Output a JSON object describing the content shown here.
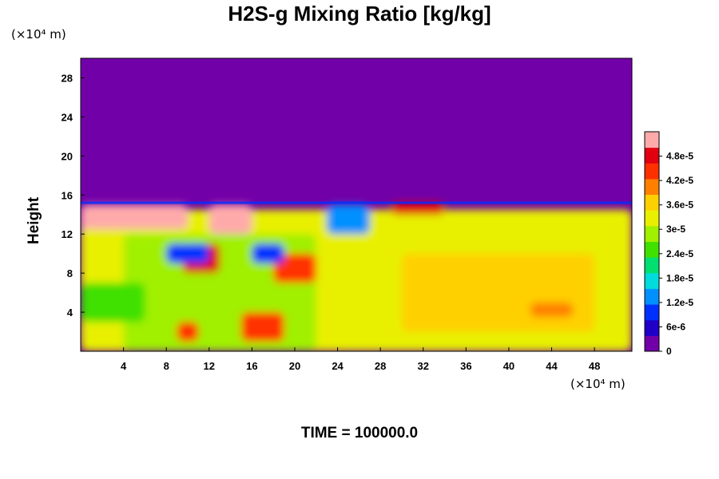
{
  "chart_data": {
    "type": "heatmap",
    "title": "H2S-g Mixing Ratio [kg/kg]",
    "x_unit": "(×10⁴ m)",
    "y_unit": "(×10⁴ m)",
    "ylabel": "Height",
    "xlabel": "",
    "xlim": [
      0,
      51.5
    ],
    "ylim": [
      0,
      30
    ],
    "x_ticks": [
      4,
      8,
      12,
      16,
      20,
      24,
      28,
      32,
      36,
      40,
      44,
      48
    ],
    "y_ticks": [
      4,
      8,
      12,
      16,
      20,
      24,
      28
    ],
    "colorbar": {
      "min": 0,
      "max": 5.4e-05,
      "tick_values": [
        0,
        6e-06,
        1.2e-05,
        1.8e-05,
        2.4e-05,
        3e-05,
        3.6e-05,
        4.2e-05,
        4.8e-05
      ],
      "tick_labels": [
        "0",
        "6e-6",
        "1.2e-5",
        "1.8e-5",
        "2.4e-5",
        "3e-5",
        "3.6e-5",
        "4.2e-5",
        "4.8e-5"
      ],
      "colors": [
        "#7200a8",
        "#2000c8",
        "#0030ff",
        "#0090ff",
        "#00dcdc",
        "#00e070",
        "#40e000",
        "#a0f000",
        "#e8f000",
        "#ffd000",
        "#ff8000",
        "#ff3000",
        "#e00010",
        "#ffaaaa"
      ]
    },
    "background_value": 0,
    "top_boundary_height": 15.2,
    "regions": [
      {
        "x": [
          0,
          51.5
        ],
        "y": [
          0,
          14.5
        ],
        "value": 3.2e-05
      },
      {
        "x": [
          4,
          22
        ],
        "y": [
          0,
          12
        ],
        "value": 2.7e-05
      },
      {
        "x": [
          30,
          48
        ],
        "y": [
          2,
          10
        ],
        "value": 3.5e-05
      },
      {
        "x": [
          0,
          10
        ],
        "y": [
          12.5,
          15
        ],
        "value": 5.2e-05
      },
      {
        "x": [
          12,
          16
        ],
        "y": [
          12,
          15
        ],
        "value": 5.2e-05
      },
      {
        "x": [
          29,
          34
        ],
        "y": [
          14,
          15.2
        ],
        "value": 5e-05
      },
      {
        "x": [
          9.5,
          13
        ],
        "y": [
          8,
          11
        ],
        "value": 5e-05
      },
      {
        "x": [
          18,
          22
        ],
        "y": [
          7,
          10
        ],
        "value": 4.6e-05
      },
      {
        "x": [
          15,
          19
        ],
        "y": [
          1,
          4
        ],
        "value": 4.5e-05
      },
      {
        "x": [
          9,
          11
        ],
        "y": [
          1,
          3
        ],
        "value": 4.6e-05
      },
      {
        "x": [
          42,
          46
        ],
        "y": [
          3.5,
          5
        ],
        "value": 4.2e-05
      },
      {
        "x": [
          8,
          12
        ],
        "y": [
          9,
          11
        ],
        "value": 1e-05
      },
      {
        "x": [
          16,
          19
        ],
        "y": [
          9,
          11
        ],
        "value": 8e-06
      },
      {
        "x": [
          23,
          27
        ],
        "y": [
          12,
          15
        ],
        "value": 1.2e-05
      },
      {
        "x": [
          0,
          6
        ],
        "y": [
          3,
          7
        ],
        "value": 2.6e-05
      }
    ]
  },
  "footer": {
    "time_label": "TIME = 100000.0"
  }
}
